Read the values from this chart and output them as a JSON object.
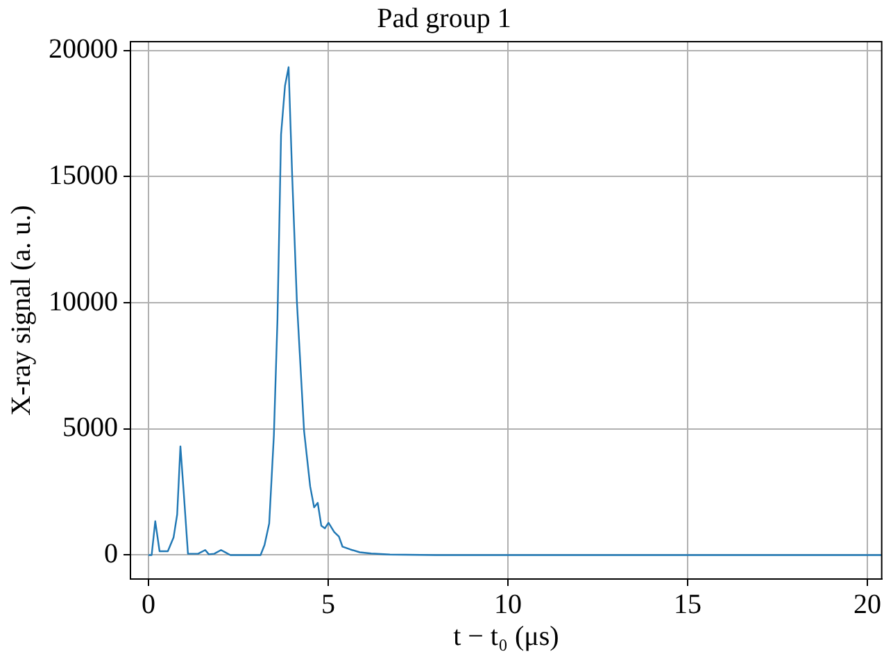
{
  "chart_data": {
    "type": "line",
    "title": "Pad group 1",
    "xlabel": "t − t₀ (μs)",
    "ylabel": "X-ray signal (a. u.)",
    "xlim": [
      -0.5,
      20.4
    ],
    "xticks": [
      0,
      5,
      10,
      15,
      20
    ],
    "ylim": [
      -950,
      20350
    ],
    "yticks": [
      0,
      5000,
      10000,
      15000,
      20000
    ],
    "grid": true,
    "marker": "none",
    "line_style": "solid",
    "series": [
      {
        "color": "#1f77b4",
        "x": [
          0,
          0.09,
          0.19,
          0.31,
          0.54,
          0.7,
          0.8,
          0.89,
          0.98,
          1.1,
          1.38,
          1.58,
          1.68,
          1.83,
          2.02,
          2.15,
          2.28,
          3.12,
          3.23,
          3.36,
          3.49,
          3.59,
          3.69,
          3.8,
          3.9,
          4.0,
          4.13,
          4.33,
          4.5,
          4.61,
          4.71,
          4.81,
          4.91,
          5.01,
          5.17,
          5.3,
          5.4,
          5.62,
          5.88,
          6.2,
          6.72,
          8,
          10,
          15,
          20.4
        ],
        "values": [
          0,
          0,
          1340,
          150,
          150,
          700,
          1610,
          4310,
          2530,
          50,
          50,
          200,
          30,
          50,
          200,
          100,
          0,
          0,
          400,
          1250,
          4740,
          9330,
          16670,
          18600,
          19340,
          15020,
          10060,
          4920,
          2720,
          1890,
          2070,
          1160,
          1060,
          1280,
          910,
          730,
          330,
          220,
          110,
          60,
          20,
          0,
          0,
          0,
          0
        ]
      }
    ]
  }
}
